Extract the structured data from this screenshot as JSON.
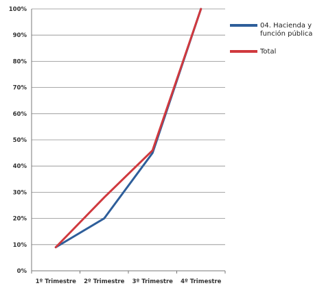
{
  "chart_data": {
    "type": "line",
    "title": "",
    "xlabel": "",
    "ylabel": "",
    "categories": [
      "1º Trimestre",
      "2º Trimestre",
      "3º Trimestre",
      "4º Trimestre"
    ],
    "y_ticks": [
      "0%",
      "10%",
      "20%",
      "30%",
      "40%",
      "50%",
      "60%",
      "70%",
      "80%",
      "90%",
      "100%"
    ],
    "ylim": [
      0,
      100
    ],
    "grid": true,
    "legend_position": "top-right",
    "series": [
      {
        "name": "04. Hacienda y función pública",
        "legend_lines": [
          "04. Hacienda y",
          "función pública"
        ],
        "values": [
          9,
          20,
          45,
          100
        ],
        "color": "#2E5E9A"
      },
      {
        "name": "Total",
        "legend_lines": [
          "Total"
        ],
        "values": [
          9,
          28,
          46,
          100
        ],
        "color": "#D0393E"
      }
    ]
  }
}
